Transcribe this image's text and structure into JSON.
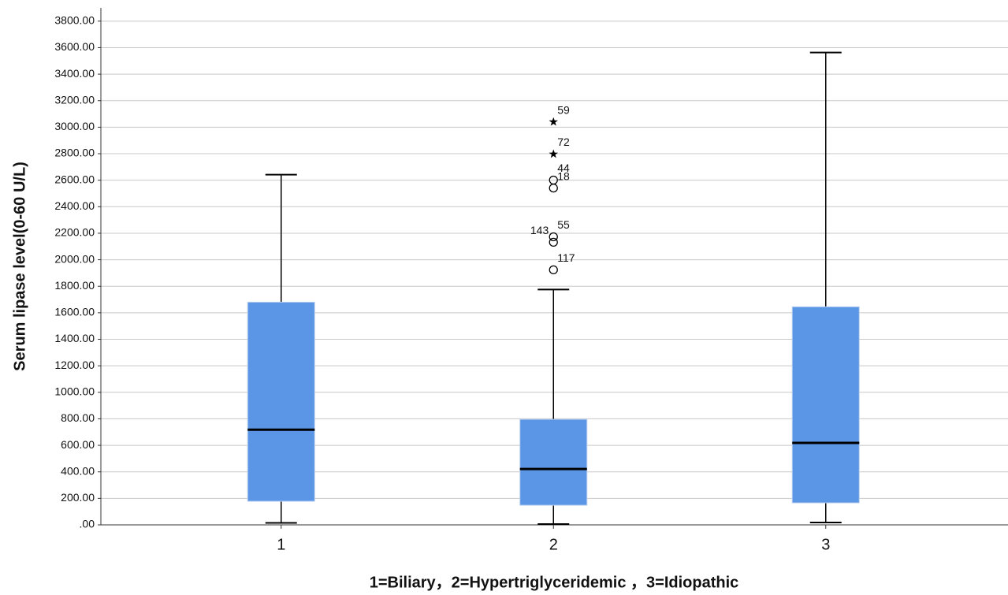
{
  "chart_data": {
    "type": "box",
    "x_label": "1=Biliary，2=Hypertriglyceridemic  ，3=Idiopathic",
    "y_label": "Serum lipase level(0-60 U/L)",
    "categories": [
      "1",
      "2",
      "3"
    ],
    "color": "#5b95e5",
    "grid": true,
    "ylim": [
      0,
      3900
    ],
    "yticks": [
      {
        "value": 0,
        "label": ".00"
      },
      {
        "value": 200,
        "label": "200.00"
      },
      {
        "value": 400,
        "label": "400.00"
      },
      {
        "value": 600,
        "label": "600.00"
      },
      {
        "value": 800,
        "label": "800.00"
      },
      {
        "value": 1000,
        "label": "1000.00"
      },
      {
        "value": 1200,
        "label": "1200.00"
      },
      {
        "value": 1400,
        "label": "1400.00"
      },
      {
        "value": 1600,
        "label": "1600.00"
      },
      {
        "value": 1800,
        "label": "1800.00"
      },
      {
        "value": 2000,
        "label": "2000.00"
      },
      {
        "value": 2200,
        "label": "2200.00"
      },
      {
        "value": 2400,
        "label": "2400.00"
      },
      {
        "value": 2600,
        "label": "2600.00"
      },
      {
        "value": 2800,
        "label": "2800.00"
      },
      {
        "value": 3000,
        "label": "3000.00"
      },
      {
        "value": 3200,
        "label": "3200.00"
      },
      {
        "value": 3400,
        "label": "3400.00"
      },
      {
        "value": 3600,
        "label": "3600.00"
      },
      {
        "value": 3800,
        "label": "3800.00"
      }
    ],
    "boxes": [
      {
        "whislo": 15,
        "q1": 178,
        "med": 718,
        "q3": 1680,
        "whishi": 2642,
        "outliers": []
      },
      {
        "whislo": 6,
        "q1": 148,
        "med": 421,
        "q3": 796,
        "whishi": 1775,
        "outliers": [
          {
            "value": 1924,
            "label": "117",
            "kind": "circle"
          },
          {
            "value": 2132,
            "label": "143",
            "kind": "circle"
          },
          {
            "value": 2173,
            "label": "55",
            "kind": "circle"
          },
          {
            "value": 2541,
            "label": "18",
            "kind": "circle"
          },
          {
            "value": 2601,
            "label": "44",
            "kind": "circle"
          },
          {
            "value": 2797,
            "label": "72",
            "kind": "star"
          },
          {
            "value": 3040,
            "label": "59",
            "kind": "star"
          }
        ]
      },
      {
        "whislo": 18,
        "q1": 166,
        "med": 618,
        "q3": 1645,
        "whishi": 3563,
        "outliers": []
      }
    ]
  }
}
